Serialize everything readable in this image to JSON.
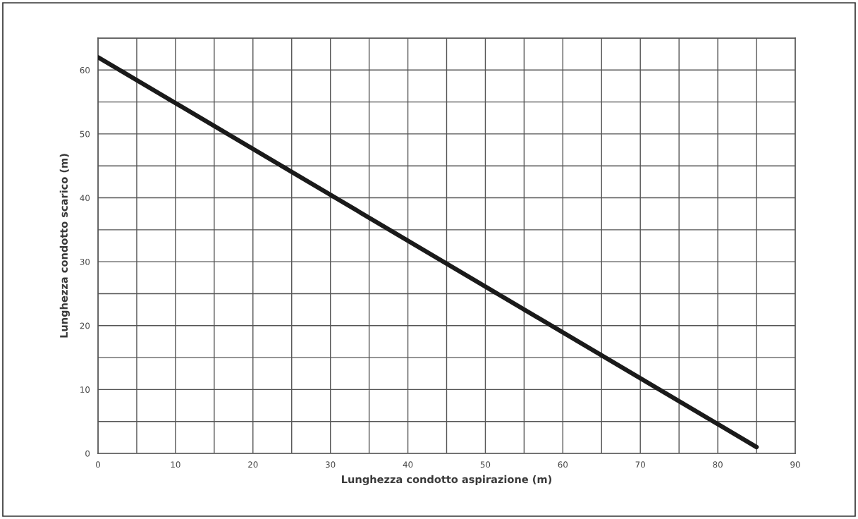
{
  "chart_data": {
    "type": "line",
    "xlabel": "Lunghezza condotto aspirazione (m)",
    "ylabel": "Lunghezza condotto scarico (m)",
    "series": [
      {
        "x": [
          0,
          85
        ],
        "values": [
          62,
          1
        ],
        "color": "#1a1a1a"
      }
    ],
    "xlim": [
      0,
      90
    ],
    "ylim": [
      0,
      65
    ],
    "xticks": [
      0,
      {
        "value": 5,
        "label": null
      },
      10,
      {
        "value": 15,
        "label": null
      },
      20,
      {
        "value": 25,
        "label": null
      },
      30,
      {
        "value": 35,
        "label": null
      },
      40,
      {
        "value": 45,
        "label": null
      },
      50,
      {
        "value": 55,
        "label": null
      },
      60,
      {
        "value": 65,
        "label": null
      },
      70,
      {
        "value": 75,
        "label": null
      },
      80,
      {
        "value": 85,
        "label": null
      },
      90
    ],
    "yticks": [
      0,
      {
        "value": 5,
        "label": null
      },
      10,
      {
        "value": 15,
        "label": null
      },
      20,
      {
        "value": 25,
        "label": null
      },
      30,
      {
        "value": 35,
        "label": null
      },
      40,
      {
        "value": 45,
        "label": null
      },
      50,
      {
        "value": 55,
        "label": null
      },
      60,
      {
        "value": 65,
        "label": null
      }
    ],
    "grid": true,
    "marker": "none",
    "line_style": "solid"
  }
}
